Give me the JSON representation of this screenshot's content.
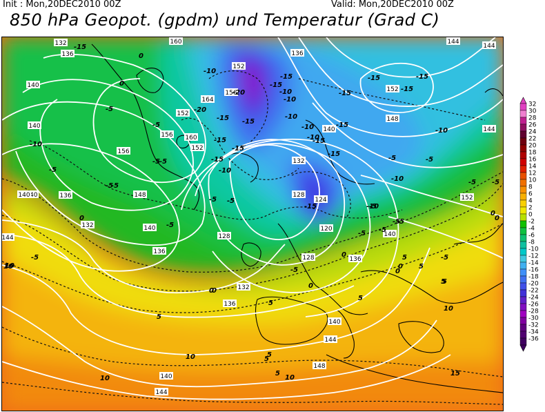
{
  "header": {
    "init": "Init : Mon,20DEC2010 00Z",
    "valid": "Valid: Mon,20DEC2010 00Z",
    "title": "850 hPa Geopot. (gpdm) und Temperatur (Grad C)"
  },
  "legend": {
    "labels": [
      "32",
      "30",
      "28",
      "26",
      "24",
      "22",
      "20",
      "18",
      "16",
      "14",
      "12",
      "10",
      "8",
      "6",
      "4",
      "2",
      "0",
      "-2",
      "-4",
      "-6",
      "-8",
      "-10",
      "-12",
      "-14",
      "-16",
      "-18",
      "-20",
      "-22",
      "-24",
      "-26",
      "-28",
      "-30",
      "-32",
      "-34",
      "-36"
    ],
    "colors": [
      "#e040c0",
      "#f080d0",
      "#c02090",
      "#901060",
      "#600030",
      "#700010",
      "#900000",
      "#b00000",
      "#d00000",
      "#e02000",
      "#e85000",
      "#f07000",
      "#f89000",
      "#f8b000",
      "#f8d000",
      "#f0e800",
      "#b8e000",
      "#10c000",
      "#10c040",
      "#10c070",
      "#10c0a0",
      "#00c8c8",
      "#40c8e0",
      "#40b0f0",
      "#4090f8",
      "#4070f0",
      "#4050e8",
      "#4030d8",
      "#6020c8",
      "#8010c0",
      "#a000c0",
      "#8000a0",
      "#600080",
      "#500070",
      "#400060"
    ],
    "markers": {
      "top": "#e040c0",
      "bottom": "#400060"
    }
  },
  "map": {
    "heights": [
      {
        "label": "132"
      },
      {
        "label": "136"
      },
      {
        "label": "160"
      },
      {
        "label": "136"
      },
      {
        "label": "144"
      },
      {
        "label": "144"
      },
      {
        "label": "140"
      },
      {
        "label": "140"
      },
      {
        "label": "152"
      },
      {
        "label": "156"
      },
      {
        "label": "164"
      },
      {
        "label": "156"
      },
      {
        "label": "160"
      },
      {
        "label": "156"
      },
      {
        "label": "152"
      },
      {
        "label": "152"
      },
      {
        "label": "148"
      },
      {
        "label": "144"
      },
      {
        "label": "140"
      },
      {
        "label": "140"
      },
      {
        "label": "136"
      },
      {
        "label": "128"
      },
      {
        "label": "136"
      },
      {
        "label": "132"
      },
      {
        "label": "132"
      },
      {
        "label": "136"
      },
      {
        "label": "140"
      },
      {
        "label": "140"
      },
      {
        "label": "144"
      },
      {
        "label": "148"
      },
      {
        "label": "140"
      },
      {
        "label": "144"
      },
      {
        "label": "148"
      },
      {
        "label": "152"
      },
      {
        "label": "140"
      },
      {
        "label": "132"
      },
      {
        "label": "128"
      },
      {
        "label": "124"
      },
      {
        "label": "120"
      },
      {
        "label": "128"
      },
      {
        "label": "136"
      },
      {
        "label": "152"
      },
      {
        "label": "144"
      },
      {
        "label": "140"
      }
    ],
    "temps": [
      {
        "label": "-15"
      },
      {
        "label": "0"
      },
      {
        "label": "0"
      },
      {
        "label": "-10"
      },
      {
        "label": "-5"
      },
      {
        "label": "-10"
      },
      {
        "label": "-5"
      },
      {
        "label": "-5"
      },
      {
        "label": "-5"
      },
      {
        "label": "-5"
      },
      {
        "label": "-5"
      },
      {
        "label": "-5"
      },
      {
        "label": "-5"
      },
      {
        "label": "-20"
      },
      {
        "label": "-15"
      },
      {
        "label": "-15"
      },
      {
        "label": "-15"
      },
      {
        "label": "-10"
      },
      {
        "label": "-15"
      },
      {
        "label": "-20"
      },
      {
        "label": "-15"
      },
      {
        "label": "-15"
      },
      {
        "label": "-10"
      },
      {
        "label": "-10"
      },
      {
        "label": "-15"
      },
      {
        "label": "-15"
      },
      {
        "label": "-10"
      },
      {
        "label": "-15"
      },
      {
        "label": "-15"
      },
      {
        "label": "-10"
      },
      {
        "label": "-15"
      },
      {
        "label": "-10"
      },
      {
        "label": "-15"
      },
      {
        "label": "-10"
      },
      {
        "label": "-15"
      },
      {
        "label": "-15"
      },
      {
        "label": "-15"
      },
      {
        "label": "-5"
      },
      {
        "label": "-5"
      },
      {
        "label": "-10"
      },
      {
        "label": "-5"
      },
      {
        "label": "-5"
      },
      {
        "label": "-10"
      },
      {
        "label": "-5"
      },
      {
        "label": "-5"
      },
      {
        "label": "-5"
      },
      {
        "label": "-5"
      },
      {
        "label": "-5"
      },
      {
        "label": "0"
      },
      {
        "label": "5"
      },
      {
        "label": "0"
      },
      {
        "label": "0"
      },
      {
        "label": "5"
      },
      {
        "label": "0"
      },
      {
        "label": "0"
      },
      {
        "label": "5"
      },
      {
        "label": "10"
      },
      {
        "label": "5"
      },
      {
        "label": "5"
      },
      {
        "label": "5"
      },
      {
        "label": "10"
      },
      {
        "label": "10"
      },
      {
        "label": "10"
      },
      {
        "label": "5"
      },
      {
        "label": "15"
      },
      {
        "label": "10"
      },
      {
        "label": "0"
      },
      {
        "label": "0"
      },
      {
        "label": "-5"
      },
      {
        "label": "-5"
      },
      {
        "label": "-5"
      },
      {
        "label": "-5"
      },
      {
        "label": "-5"
      },
      {
        "label": "0"
      },
      {
        "label": "0"
      },
      {
        "label": "5"
      },
      {
        "label": "5"
      },
      {
        "label": "5"
      },
      {
        "label": "10"
      }
    ]
  }
}
